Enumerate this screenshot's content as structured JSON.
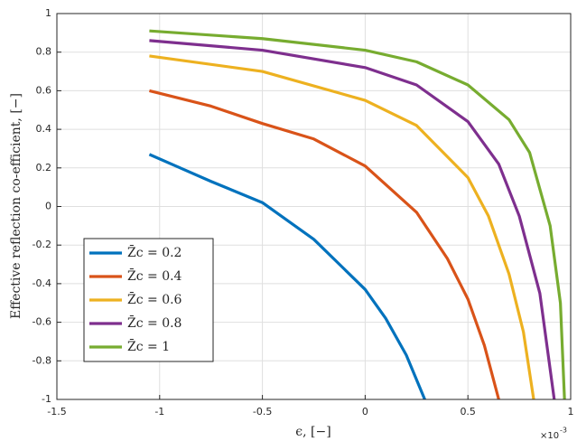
{
  "chart_data": {
    "type": "line",
    "xlabel": "ϵ, [−]",
    "ylabel": "Effective reflection co-efficient, [−]",
    "x_multiplier": "×10",
    "x_multiplier_exponent": "-3",
    "xlim": [
      -1.5,
      1
    ],
    "xticks": [
      -1.5,
      -1,
      -0.5,
      0,
      0.5,
      1
    ],
    "ylim": [
      -1,
      1
    ],
    "yticks": [
      -1,
      -0.8,
      -0.6,
      -0.4,
      -0.2,
      0,
      0.2,
      0.4,
      0.6,
      0.8,
      1
    ],
    "grid": true,
    "legend": "lower-left",
    "series": [
      {
        "name": "Z̄c = 0.2",
        "color": "#0072bd",
        "x": [
          -1.05,
          -0.9,
          -0.75,
          -0.5,
          -0.25,
          0,
          0.1,
          0.2,
          0.29
        ],
        "values": [
          0.27,
          0.2,
          0.13,
          0.02,
          -0.17,
          -0.43,
          -0.58,
          -0.77,
          -1
        ]
      },
      {
        "name": "Z̄c = 0.4",
        "color": "#d95319",
        "x": [
          -1.05,
          -0.75,
          -0.5,
          -0.25,
          0,
          0.25,
          0.4,
          0.5,
          0.58,
          0.65
        ],
        "values": [
          0.6,
          0.52,
          0.43,
          0.35,
          0.21,
          -0.03,
          -0.27,
          -0.48,
          -0.72,
          -1
        ]
      },
      {
        "name": "Z̄c = 0.6",
        "color": "#edb120",
        "x": [
          -1.05,
          -0.5,
          0,
          0.25,
          0.5,
          0.6,
          0.7,
          0.77,
          0.82
        ],
        "values": [
          0.78,
          0.7,
          0.55,
          0.42,
          0.15,
          -0.05,
          -0.35,
          -0.65,
          -1
        ]
      },
      {
        "name": "Z̄c = 0.8",
        "color": "#7e2f8e",
        "x": [
          -1.05,
          -0.5,
          0,
          0.25,
          0.5,
          0.65,
          0.75,
          0.85,
          0.92
        ],
        "values": [
          0.86,
          0.81,
          0.72,
          0.63,
          0.44,
          0.22,
          -0.05,
          -0.45,
          -1
        ]
      },
      {
        "name": "Z̄c = 1",
        "color": "#77ac30",
        "x": [
          -1.05,
          -0.5,
          0,
          0.25,
          0.5,
          0.7,
          0.8,
          0.9,
          0.95,
          0.97
        ],
        "values": [
          0.91,
          0.87,
          0.81,
          0.75,
          0.63,
          0.45,
          0.28,
          -0.1,
          -0.5,
          -1
        ]
      }
    ]
  }
}
